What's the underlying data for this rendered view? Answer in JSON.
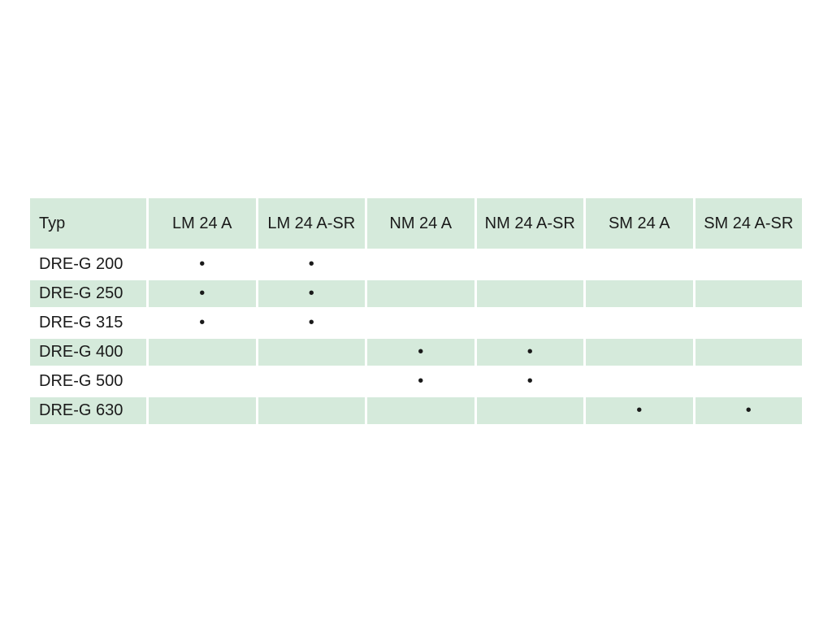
{
  "table": {
    "header": [
      "Typ",
      "LM 24 A",
      "LM 24 A-SR",
      "NM 24 A",
      "NM 24 A-SR",
      "SM 24 A",
      "SM 24 A-SR"
    ],
    "rows": [
      [
        "DRE-G 200",
        "•",
        "•",
        null,
        null,
        null,
        null
      ],
      [
        "DRE-G 250",
        "•",
        "•",
        null,
        null,
        null,
        null
      ],
      [
        "DRE-G 315",
        "•",
        "•",
        null,
        null,
        null,
        null
      ],
      [
        "DRE-G 400",
        null,
        null,
        "•",
        "•",
        null,
        null
      ],
      [
        "DRE-G 500",
        null,
        null,
        "•",
        "•",
        null,
        null
      ],
      [
        "DRE-G 630",
        null,
        null,
        null,
        null,
        "•",
        "•"
      ]
    ]
  }
}
